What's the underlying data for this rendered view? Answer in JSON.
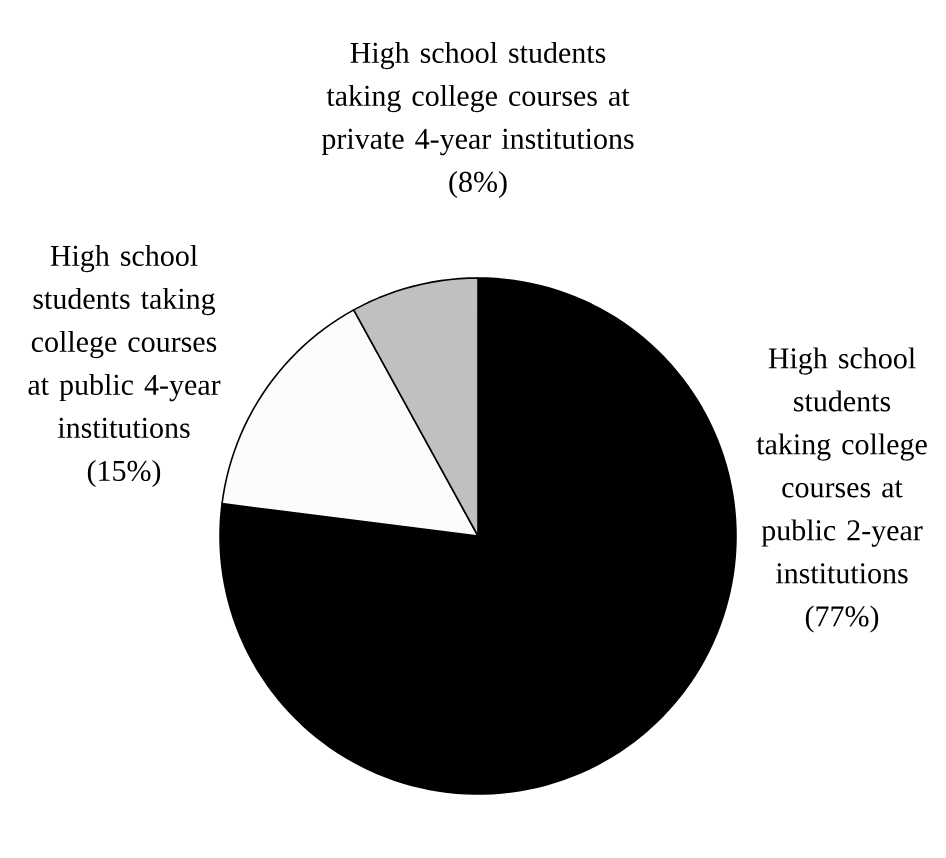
{
  "chart_data": {
    "type": "pie",
    "categories": [
      "High school students taking college courses at public 2-year institutions",
      "High school students taking college courses at public 4-year institutions",
      "High school students taking college courses at private 4-year institutions"
    ],
    "values": [
      77,
      15,
      8
    ],
    "value_labels": [
      "(77%)",
      "(15%)",
      "(8%)"
    ],
    "colors": [
      "#000000",
      "#fcfcfc",
      "#c0c0c0"
    ]
  }
}
